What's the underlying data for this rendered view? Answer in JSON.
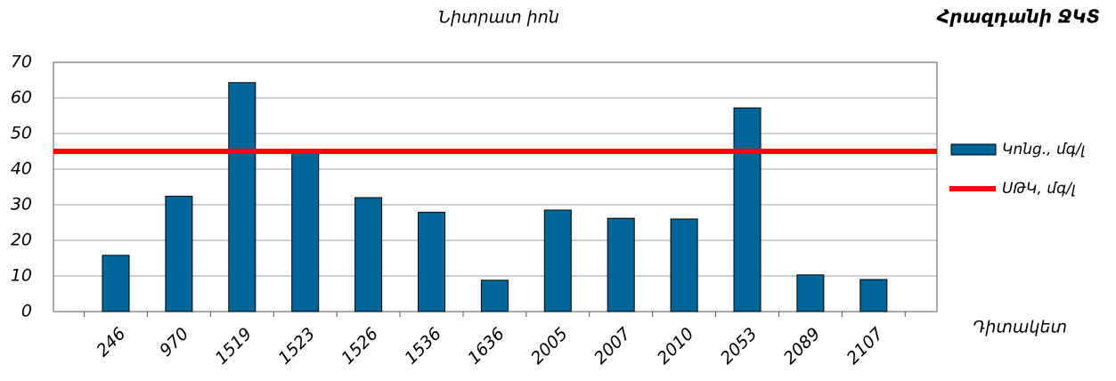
{
  "chart_data": {
    "type": "bar",
    "title": "Նիտրատ իոն",
    "subtitle": "Հրազդանի ՋԿՏ",
    "x_label": "Դիտակետ",
    "categories": [
      "246",
      "970",
      "1519",
      "1523",
      "1526",
      "1536",
      "1636",
      "2005",
      "2007",
      "2010",
      "2053",
      "2089",
      "2107"
    ],
    "series": [
      {
        "name": "Կոնց., մգ/լ",
        "color": "#006699",
        "values": [
          15.8,
          32.4,
          64.3,
          45.5,
          32,
          27.9,
          8.8,
          28.5,
          26.2,
          26,
          57.2,
          10.3,
          9
        ]
      }
    ],
    "threshold": {
      "name": "ՍԹԿ, մգ/լ",
      "color": "#ff0000",
      "value": 45
    },
    "ylim": [
      0,
      70
    ],
    "yticks": [
      0,
      10,
      20,
      30,
      40,
      50,
      60,
      70
    ],
    "grid": true,
    "legend": "right"
  }
}
